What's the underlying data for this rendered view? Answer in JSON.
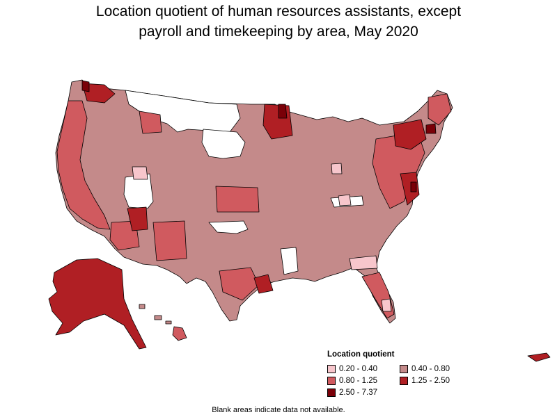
{
  "title_line1": "Location quotient of human resources assistants, except",
  "title_line2": "payroll and timekeeping by area, May 2020",
  "legend": {
    "title": "Location quotient",
    "items": [
      {
        "label": "0.20 - 0.40",
        "color": "#f7c6cc"
      },
      {
        "label": "0.40 - 0.80",
        "color": "#c48a8a"
      },
      {
        "label": "0.80 - 1.25",
        "color": "#d05a5f"
      },
      {
        "label": "1.25 - 2.50",
        "color": "#b01f24"
      },
      {
        "label": "2.50 - 7.37",
        "color": "#7a0008"
      }
    ]
  },
  "footnote": "Blank areas indicate data not available.",
  "colors": {
    "lq_020_040": "#f7c6cc",
    "lq_040_080": "#c48a8a",
    "lq_080_125": "#d05a5f",
    "lq_125_250": "#b01f24",
    "lq_250_737": "#7a0008",
    "no_data": "#ffffff",
    "border": "#000000"
  }
}
